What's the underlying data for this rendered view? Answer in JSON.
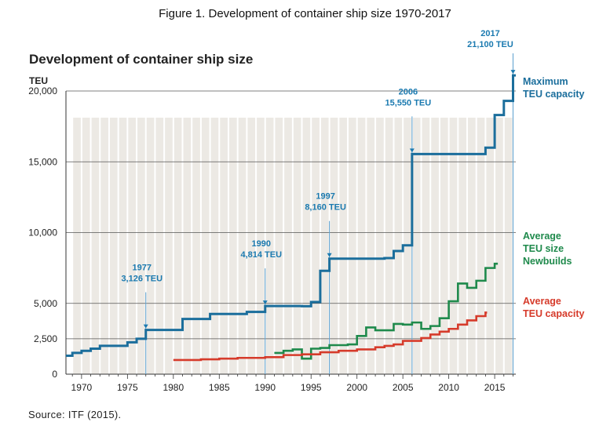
{
  "figure_caption": "Figure 1. Development of container ship size 1970-2017",
  "source": "Source: ITF (2015).",
  "colors": {
    "max": "#1b6e9c",
    "newbuild": "#1f8a4c",
    "avg": "#d63b2b",
    "annotation": "#1b7ab0",
    "grid": "#555555",
    "panel": "#ece9e4"
  },
  "chart_data": {
    "type": "line",
    "title": "Development of container ship size",
    "ylabel": "TEU",
    "xlabel": "",
    "xlim": [
      1968.3,
      2017.3
    ],
    "ylim": [
      0,
      21500
    ],
    "x_ticks": [
      1970,
      1975,
      1980,
      1985,
      1990,
      1995,
      2000,
      2005,
      2010,
      2015
    ],
    "y_ticks": [
      {
        "value": 0,
        "label": "0"
      },
      {
        "value": 2500,
        "label": "2,500"
      },
      {
        "value": 5000,
        "label": "5,000"
      },
      {
        "value": 10000,
        "label": "10,000"
      },
      {
        "value": 15000,
        "label": "15,000"
      },
      {
        "value": 20000,
        "label": "20,000"
      }
    ],
    "series": [
      {
        "key": "max",
        "name": "Maximum TEU capacity",
        "label_lines": [
          "Maximum",
          "TEU capacity"
        ],
        "step": true,
        "x": [
          1968.3,
          1969,
          1970,
          1971,
          1972,
          1975,
          1976,
          1977,
          1981,
          1984,
          1988,
          1990,
          1994,
          1995,
          1996,
          1997,
          2003,
          2004,
          2005,
          2006,
          2014,
          2015,
          2016,
          2017,
          2017.3
        ],
        "values": [
          1300,
          1500,
          1650,
          1800,
          2000,
          2250,
          2500,
          3126,
          3900,
          4250,
          4400,
          4814,
          4800,
          5100,
          7300,
          8160,
          8200,
          8700,
          9100,
          15550,
          16000,
          18300,
          19300,
          21100,
          21100
        ]
      },
      {
        "key": "newbuild",
        "name": "Average TEU size Newbuilds",
        "label_lines": [
          "Average",
          "TEU size",
          "Newbuilds"
        ],
        "step": true,
        "x": [
          1991,
          1992,
          1993,
          1994,
          1995,
          1996,
          1997,
          1999,
          2000,
          2001,
          2002,
          2004,
          2005,
          2006,
          2007,
          2008,
          2009,
          2010,
          2011,
          2012,
          2013,
          2014,
          2015
        ],
        "values": [
          1500,
          1650,
          1750,
          1100,
          1800,
          1850,
          2050,
          2100,
          2700,
          3300,
          3100,
          3550,
          3500,
          3650,
          3200,
          3400,
          3950,
          5150,
          6400,
          6100,
          6600,
          7500,
          7800
        ]
      },
      {
        "key": "avg",
        "name": "Average TEU capacity",
        "label_lines": [
          "Average",
          "TEU capacity"
        ],
        "step": true,
        "x": [
          1980,
          1983,
          1985,
          1987,
          1990,
          1992,
          1994,
          1996,
          1998,
          2000,
          2002,
          2003,
          2004,
          2005,
          2007,
          2008,
          2009,
          2010,
          2011,
          2012,
          2013,
          2014
        ],
        "values": [
          1000,
          1050,
          1100,
          1150,
          1200,
          1350,
          1400,
          1550,
          1650,
          1750,
          1900,
          2000,
          2100,
          2350,
          2550,
          2800,
          3000,
          3200,
          3500,
          3800,
          4100,
          4350
        ]
      }
    ],
    "annotations": [
      {
        "year": 1977,
        "lines": [
          "1977",
          "3,126 TEU"
        ],
        "value": 3126
      },
      {
        "year": 1990,
        "lines": [
          "1990",
          "4,814 TEU"
        ],
        "value": 4814
      },
      {
        "year": 1997,
        "lines": [
          "1997",
          "8,160 TEU"
        ],
        "value": 8160
      },
      {
        "year": 2006,
        "lines": [
          "2006",
          "15,550 TEU"
        ],
        "value": 15550
      },
      {
        "year": 2017,
        "lines": [
          "2017",
          "21,100 TEU"
        ],
        "value": 21100
      }
    ]
  }
}
